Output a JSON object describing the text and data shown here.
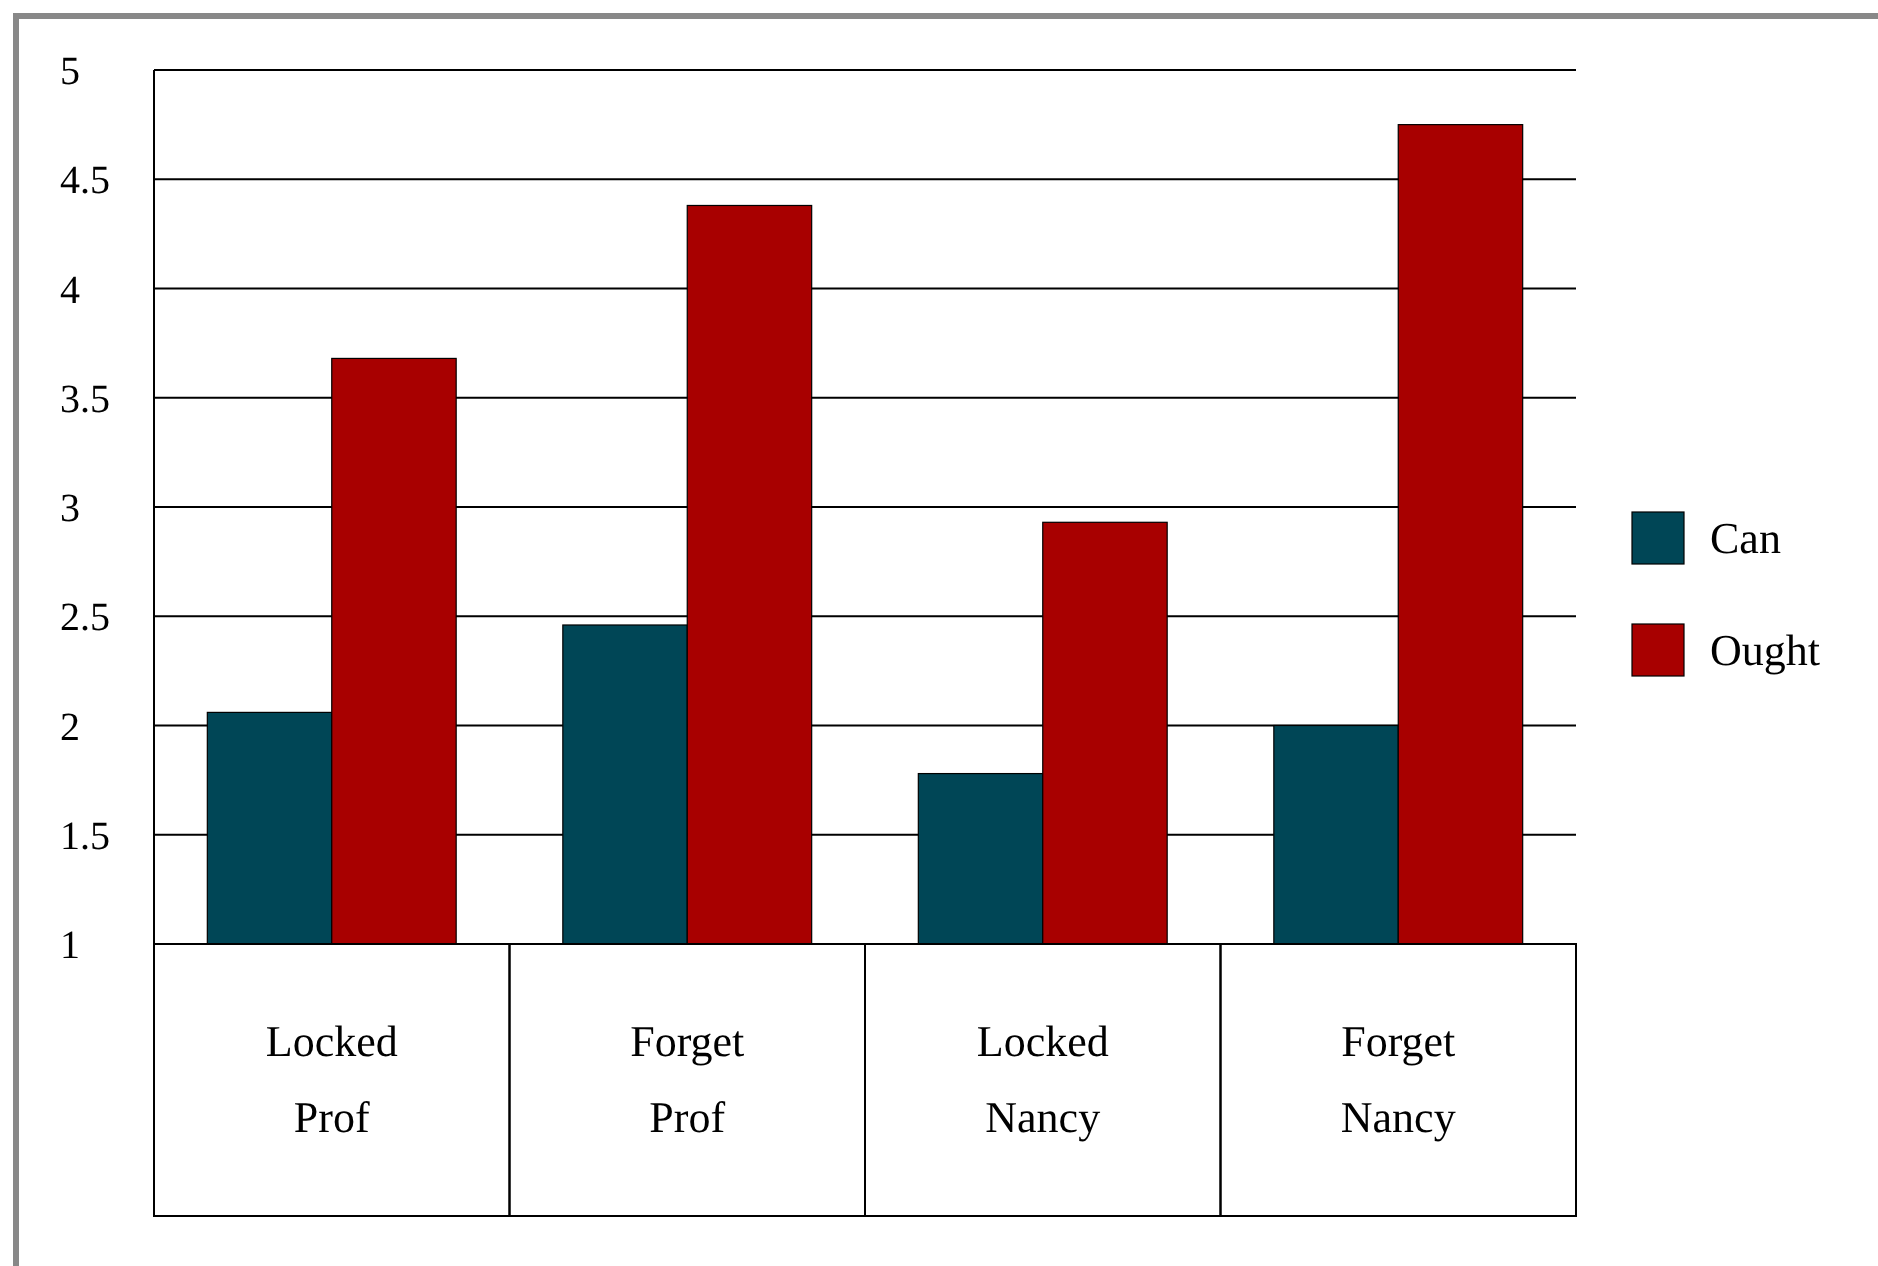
{
  "chart_data": {
    "type": "bar",
    "categories": [
      "Locked Prof",
      "Forget Prof",
      "Locked Nancy",
      "Forget Nancy"
    ],
    "series": [
      {
        "name": "Can",
        "color": "#004656",
        "values": [
          2.06,
          2.46,
          1.78,
          2.0
        ]
      },
      {
        "name": "Ought",
        "color": "#a80000",
        "values": [
          3.68,
          4.38,
          2.93,
          4.75
        ]
      }
    ],
    "ylim": [
      1,
      5
    ],
    "yticks": [
      1,
      1.5,
      2,
      2.5,
      3,
      3.5,
      4,
      4.5,
      5
    ],
    "grid": "y",
    "legend": "right"
  }
}
